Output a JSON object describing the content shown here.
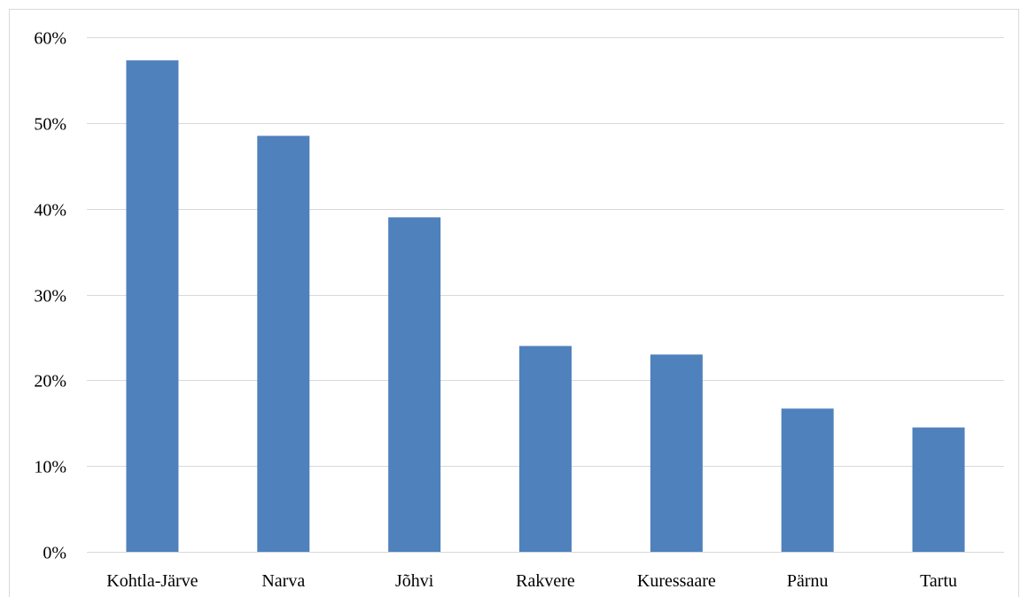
{
  "chart_data": {
    "type": "bar",
    "categories": [
      "Kohtla-Järve",
      "Narva",
      "Jõhvi",
      "Rakvere",
      "Kuressaare",
      "Pärnu",
      "Tartu"
    ],
    "values": [
      57.3,
      48.5,
      39.0,
      24.0,
      23.0,
      16.7,
      14.5
    ],
    "value_unit": "%",
    "ylim": [
      0,
      60
    ],
    "y_ticks": [
      0,
      10,
      20,
      30,
      40,
      50,
      60
    ],
    "y_tick_labels": [
      "0%",
      "10%",
      "20%",
      "30%",
      "40%",
      "50%",
      "60%"
    ],
    "title": "",
    "xlabel": "",
    "ylabel": "",
    "grid": true,
    "legend": "none",
    "bar_color": "#4f81bd",
    "grid_color": "#d9d9d9"
  }
}
